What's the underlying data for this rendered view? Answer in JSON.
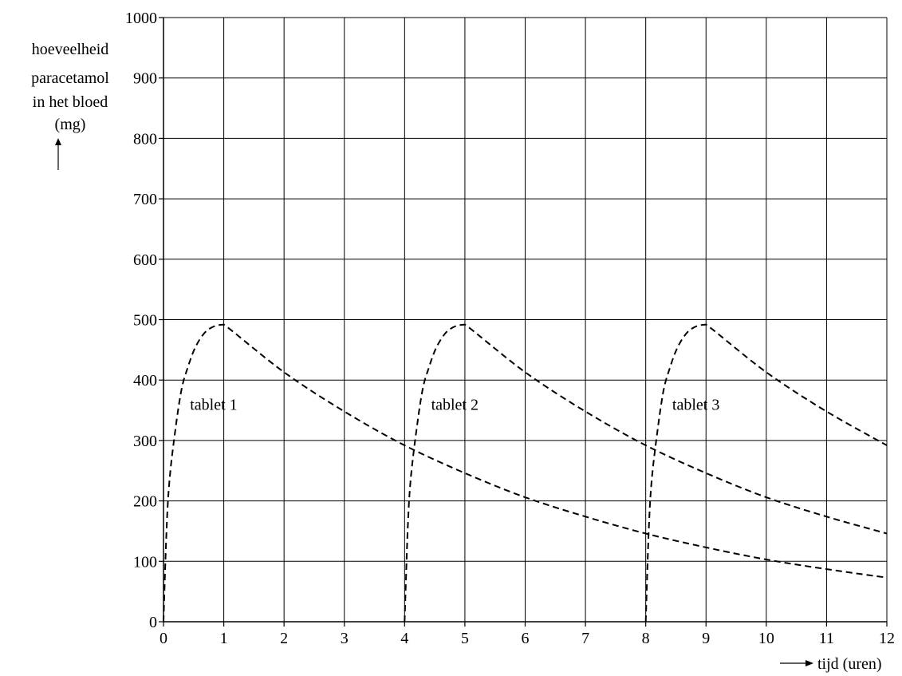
{
  "chart_data": {
    "type": "line",
    "title": "",
    "xlabel": "tijd (uren)",
    "ylabel_lines": [
      "hoeveelheid",
      "paracetamol",
      "in het bloed",
      "(mg)"
    ],
    "xlim": [
      0,
      12
    ],
    "ylim": [
      0,
      1000
    ],
    "x_ticks": [
      "0",
      "1",
      "2",
      "3",
      "4",
      "5",
      "6",
      "7",
      "8",
      "9",
      "10",
      "11",
      "12"
    ],
    "y_ticks": [
      "0",
      "100",
      "200",
      "300",
      "400",
      "500",
      "600",
      "700",
      "800",
      "900",
      "1000"
    ],
    "grid": true,
    "series": [
      {
        "name": "tablet 1",
        "x": [
          0,
          0.05,
          0.1,
          0.2,
          0.3,
          0.4,
          0.5,
          0.6,
          0.7,
          0.8,
          0.9,
          1,
          2,
          3,
          4,
          5,
          6,
          7,
          8,
          9,
          10,
          11,
          12
        ],
        "y": [
          0,
          150,
          235,
          320,
          385,
          420,
          448,
          467,
          480,
          487,
          491,
          492,
          413,
          348,
          292,
          246,
          206,
          174,
          146,
          123,
          103,
          87,
          73
        ]
      },
      {
        "name": "tablet 2",
        "x": [
          4,
          4.05,
          4.1,
          4.2,
          4.3,
          4.4,
          4.5,
          4.6,
          4.7,
          4.8,
          4.9,
          5,
          6,
          7,
          8,
          9,
          10,
          11,
          12
        ],
        "y": [
          0,
          150,
          235,
          320,
          385,
          420,
          448,
          467,
          480,
          487,
          491,
          492,
          413,
          348,
          292,
          246,
          206,
          174,
          146
        ]
      },
      {
        "name": "tablet 3",
        "x": [
          8,
          8.05,
          8.1,
          8.2,
          8.3,
          8.4,
          8.5,
          8.6,
          8.7,
          8.8,
          8.9,
          9,
          10,
          11,
          12
        ],
        "y": [
          0,
          150,
          235,
          320,
          385,
          420,
          448,
          467,
          480,
          487,
          491,
          492,
          413,
          348,
          292
        ]
      }
    ],
    "annotations": [
      {
        "text": "tablet 1",
        "x": 0.4,
        "y": 360
      },
      {
        "text": "tablet 2",
        "x": 4.4,
        "y": 360
      },
      {
        "text": "tablet 3",
        "x": 8.4,
        "y": 360
      }
    ]
  }
}
